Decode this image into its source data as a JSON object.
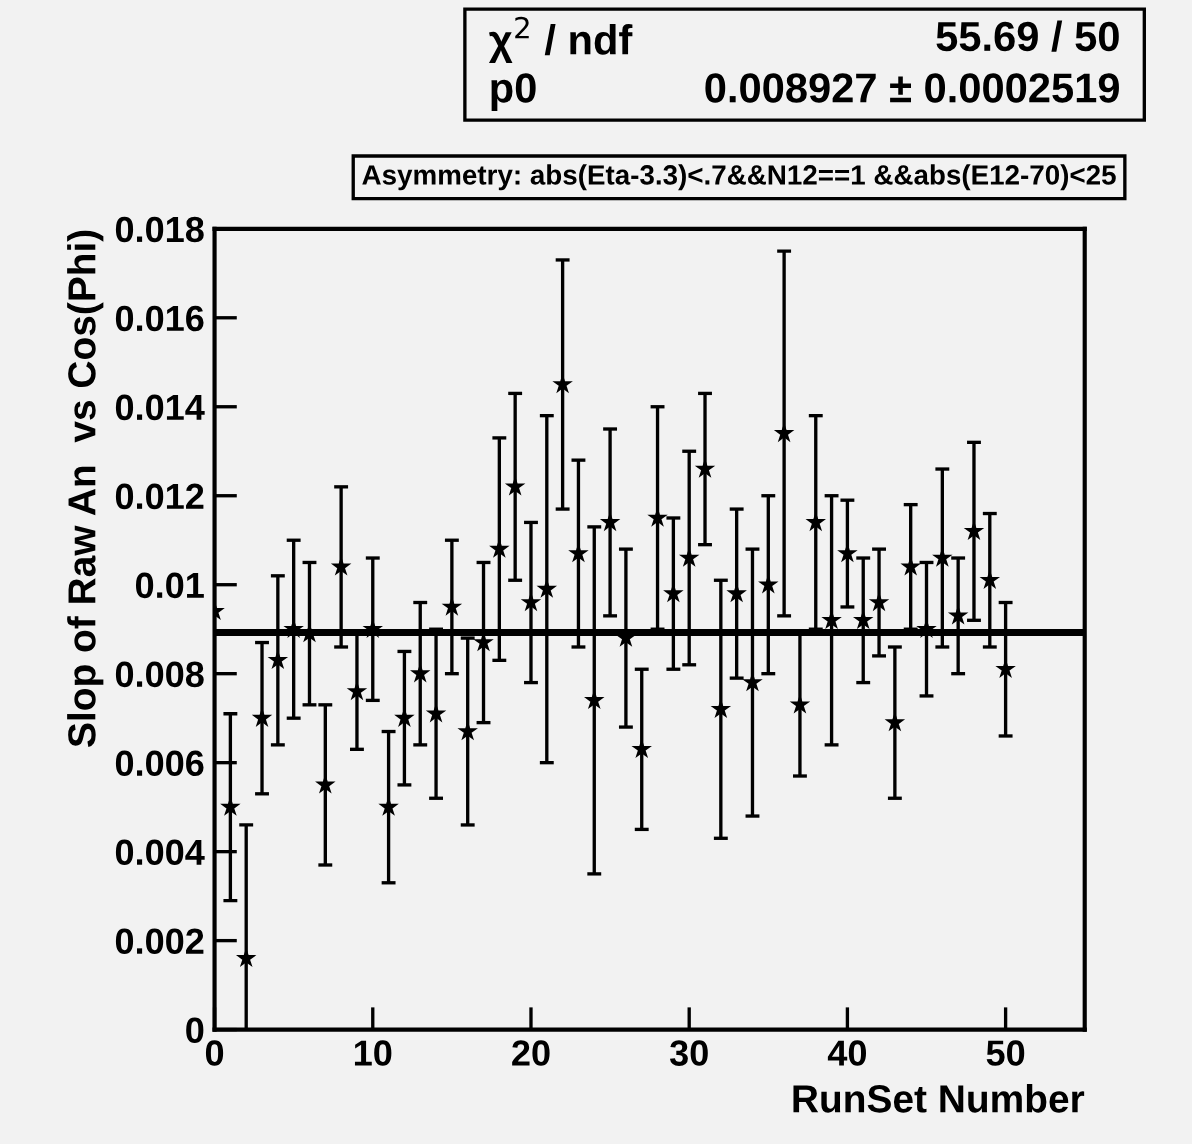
{
  "chart_data": {
    "type": "scatter",
    "xlabel": "RunSet Number",
    "ylabel": "Slop of Raw An  vs Cos(Phi)",
    "x": [
      0,
      1,
      2,
      3,
      4,
      5,
      6,
      7,
      8,
      9,
      10,
      11,
      12,
      13,
      14,
      15,
      16,
      17,
      18,
      19,
      20,
      21,
      22,
      23,
      24,
      25,
      26,
      27,
      28,
      29,
      30,
      31,
      32,
      33,
      34,
      35,
      36,
      37,
      38,
      39,
      40,
      41,
      42,
      43,
      44,
      45,
      46,
      47,
      48,
      49,
      50
    ],
    "series": [
      {
        "color": "#000000",
        "values": [
          0.0094,
          0.005,
          0.0016,
          0.007,
          0.0083,
          0.009,
          0.0089,
          0.0055,
          0.0104,
          0.0076,
          0.009,
          0.005,
          0.007,
          0.008,
          0.0071,
          0.0095,
          0.0067,
          0.0087,
          0.0108,
          0.0122,
          0.0096,
          0.0099,
          0.0145,
          0.0107,
          0.0074,
          0.0114,
          0.0088,
          0.0063,
          0.0115,
          0.0098,
          0.0106,
          0.0126,
          0.0072,
          0.0098,
          0.0078,
          0.01,
          0.0134,
          0.0073,
          0.0114,
          0.0092,
          0.0107,
          0.0092,
          0.0096,
          0.0069,
          0.0104,
          0.009,
          0.0106,
          0.0093,
          0.0112,
          0.0101,
          0.0081
        ],
        "errors": [
          null,
          0.0021,
          0.003,
          0.0017,
          0.0019,
          0.002,
          0.0016,
          0.0018,
          0.0018,
          0.0013,
          0.0016,
          0.0017,
          0.0015,
          0.0016,
          0.0019,
          0.0015,
          0.0021,
          0.0018,
          0.0025,
          0.0021,
          0.0018,
          0.0039,
          0.0028,
          0.0021,
          0.0039,
          0.0021,
          0.002,
          0.0018,
          0.0025,
          0.0017,
          0.0024,
          0.0017,
          0.0029,
          0.0019,
          0.003,
          0.002,
          0.0041,
          0.0016,
          0.0024,
          0.0028,
          0.0012,
          0.0014,
          0.0012,
          0.0017,
          0.0014,
          0.0015,
          0.002,
          0.0013,
          0.002,
          0.0015,
          0.0015
        ]
      }
    ],
    "marker": "star",
    "xlim": [
      0,
      55
    ],
    "xticks": [
      0,
      10,
      20,
      30,
      40,
      50
    ],
    "ylim": [
      0,
      0.018
    ],
    "yticks": [
      0,
      0.002,
      0.004,
      0.006,
      0.008,
      0.01,
      0.012,
      0.014,
      0.016,
      0.018
    ],
    "ref_lines": [
      {
        "axis": "y",
        "value": 0.008927,
        "color": "#000000"
      }
    ],
    "annotations": [
      "χ$^{2}$ / ndf",
      "55.69 / 50",
      "p0",
      "0.008927 ± 0.0002519",
      "Asymmetry: abs(Eta-3.3)<.7&&N12==1 &&abs(E12-70)<25"
    ],
    "grid": false
  }
}
